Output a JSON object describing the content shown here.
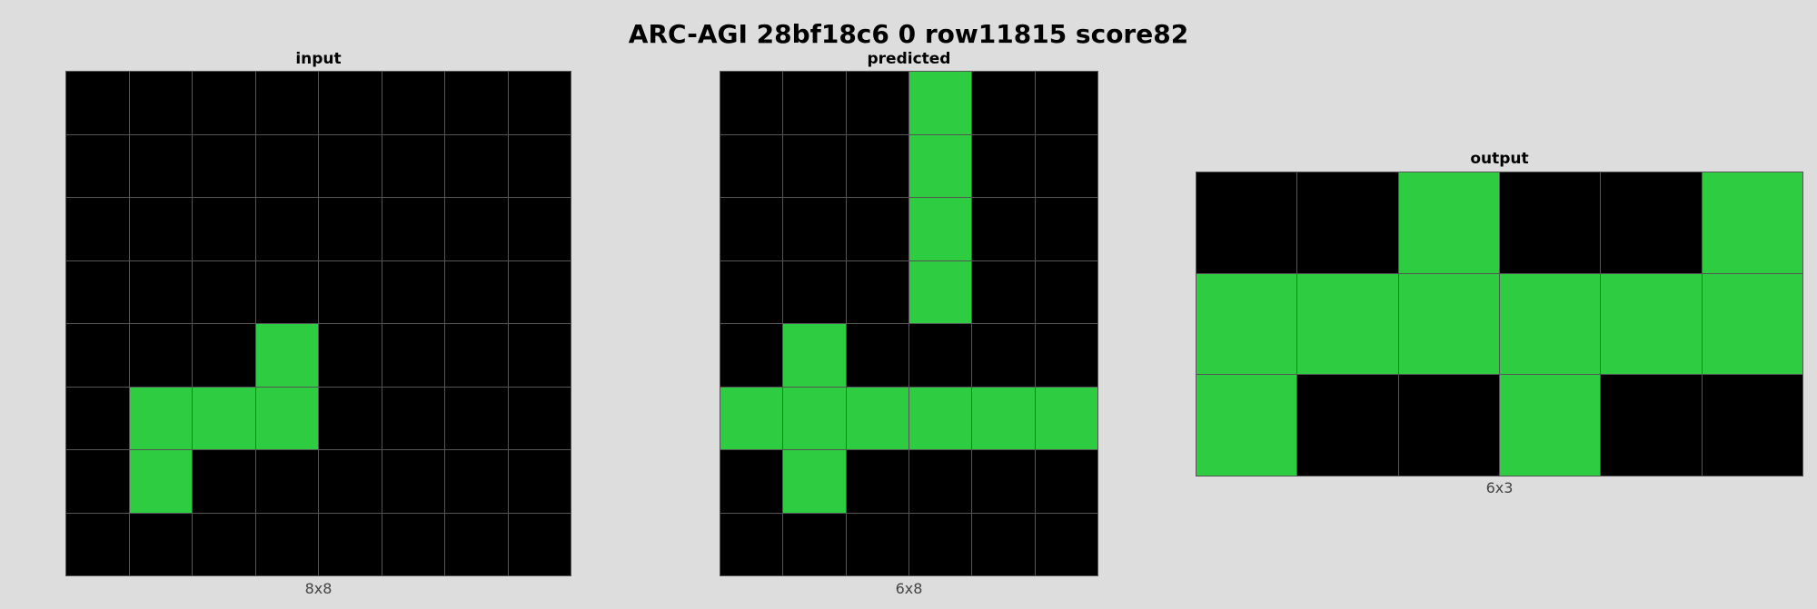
{
  "title": "ARC-AGI 28bf18c6 0 row11815 score82",
  "palette": {
    "0": "#000000",
    "3": "#2ecc40"
  },
  "panels": {
    "input": {
      "title": "input",
      "dims": "8x8",
      "grid": [
        [
          0,
          0,
          0,
          0,
          0,
          0,
          0,
          0
        ],
        [
          0,
          0,
          0,
          0,
          0,
          0,
          0,
          0
        ],
        [
          0,
          0,
          0,
          0,
          0,
          0,
          0,
          0
        ],
        [
          0,
          0,
          0,
          0,
          0,
          0,
          0,
          0
        ],
        [
          0,
          0,
          0,
          3,
          0,
          0,
          0,
          0
        ],
        [
          0,
          3,
          3,
          3,
          0,
          0,
          0,
          0
        ],
        [
          0,
          3,
          0,
          0,
          0,
          0,
          0,
          0
        ],
        [
          0,
          0,
          0,
          0,
          0,
          0,
          0,
          0
        ]
      ]
    },
    "predicted": {
      "title": "predicted",
      "dims": "6x8",
      "grid": [
        [
          0,
          0,
          0,
          3,
          0,
          0
        ],
        [
          0,
          0,
          0,
          3,
          0,
          0
        ],
        [
          0,
          0,
          0,
          3,
          0,
          0
        ],
        [
          0,
          0,
          0,
          3,
          0,
          0
        ],
        [
          0,
          3,
          0,
          0,
          0,
          0
        ],
        [
          3,
          3,
          3,
          3,
          3,
          3
        ],
        [
          0,
          3,
          0,
          0,
          0,
          0
        ],
        [
          0,
          0,
          0,
          0,
          0,
          0
        ]
      ]
    },
    "output": {
      "title": "output",
      "dims": "6x3",
      "grid": [
        [
          0,
          0,
          3,
          0,
          0,
          3
        ],
        [
          3,
          3,
          3,
          3,
          3,
          3
        ],
        [
          3,
          0,
          0,
          3,
          0,
          0
        ]
      ]
    }
  }
}
